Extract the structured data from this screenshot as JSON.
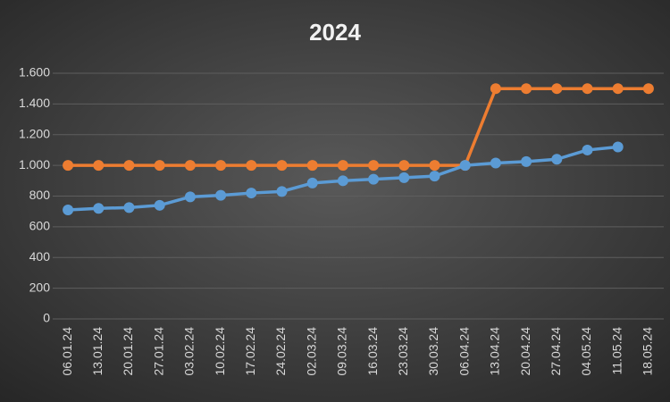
{
  "chart_data": {
    "type": "line",
    "title": "2024",
    "categories": [
      "06.01.24",
      "13.01.24",
      "20.01.24",
      "27.01.24",
      "03.02.24",
      "10.02.24",
      "17.02.24",
      "24.02.24",
      "02.03.24",
      "09.03.24",
      "16.03.24",
      "23.03.24",
      "30.03.24",
      "06.04.24",
      "13.04.24",
      "20.04.24",
      "27.04.24",
      "04.05.24",
      "11.05.24",
      "18.05.24"
    ],
    "series": [
      {
        "color": "#ed7d31",
        "values": [
          1000,
          1000,
          1000,
          1000,
          1000,
          1000,
          1000,
          1000,
          1000,
          1000,
          1000,
          1000,
          1000,
          1000,
          1500,
          1500,
          1500,
          1500,
          1500,
          1500
        ]
      },
      {
        "color": "#5b9bd5",
        "values": [
          710,
          720,
          725,
          740,
          795,
          805,
          820,
          830,
          885,
          900,
          910,
          920,
          930,
          1000,
          1015,
          1025,
          1040,
          1100,
          1120,
          null
        ]
      }
    ],
    "ylim": [
      0,
      1600
    ],
    "yticks": [
      0,
      200,
      400,
      600,
      800,
      {
        "value": 1000,
        "label": "1.000"
      },
      {
        "value": 1200,
        "label": "1.200"
      },
      {
        "value": 1400,
        "label": "1.400"
      },
      {
        "value": 1600,
        "label": "1.600"
      }
    ],
    "grid": true
  }
}
